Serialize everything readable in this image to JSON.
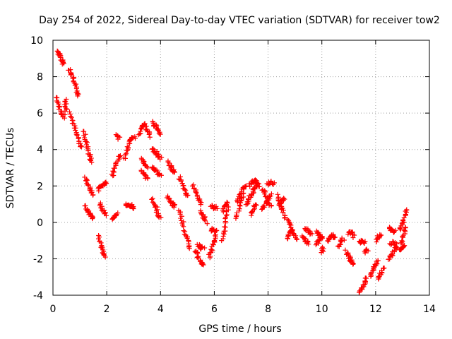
{
  "chart_data": {
    "type": "scatter",
    "title": "Day 254 of 2022, Sidereal Day-to-day VTEC variation (SDTVAR) for receiver tow2",
    "xlabel": "GPS time / hours",
    "ylabel": "SDTVAR / TECUs",
    "xlim": [
      0,
      14
    ],
    "ylim": [
      -4,
      10
    ],
    "xticks": [
      0,
      2,
      4,
      6,
      8,
      10,
      12,
      14
    ],
    "yticks": [
      -4,
      -2,
      0,
      2,
      4,
      6,
      8,
      10
    ],
    "xtick_labels": [
      "0",
      "2",
      "4",
      "6",
      "8",
      "10",
      "12",
      "14"
    ],
    "ytick_labels": [
      "-4",
      "-2",
      "0",
      "2",
      "4",
      "6",
      "8",
      "10"
    ],
    "grid": true,
    "marker": "plus",
    "color": "#ff0000",
    "tracks": [
      [
        [
          0.18,
          9.4
        ],
        [
          0.25,
          9.2
        ],
        [
          0.32,
          8.9
        ],
        [
          0.4,
          8.7
        ]
      ],
      [
        [
          0.15,
          6.9
        ],
        [
          0.22,
          6.4
        ],
        [
          0.3,
          6.0
        ],
        [
          0.4,
          5.8
        ],
        [
          0.48,
          6.8
        ],
        [
          0.5,
          6.2
        ]
      ],
      [
        [
          0.6,
          8.4
        ],
        [
          0.7,
          8.1
        ],
        [
          0.8,
          7.7
        ],
        [
          0.9,
          7.2
        ],
        [
          0.95,
          7.0
        ]
      ],
      [
        [
          0.65,
          6.0
        ],
        [
          0.75,
          5.5
        ],
        [
          0.85,
          5.0
        ],
        [
          0.95,
          4.5
        ],
        [
          1.05,
          4.1
        ]
      ],
      [
        [
          1.15,
          5.0
        ],
        [
          1.22,
          4.5
        ],
        [
          1.3,
          4.0
        ],
        [
          1.38,
          3.6
        ],
        [
          1.42,
          3.3
        ]
      ],
      [
        [
          1.2,
          2.5
        ],
        [
          1.3,
          2.1
        ],
        [
          1.4,
          1.8
        ],
        [
          1.48,
          1.5
        ]
      ],
      [
        [
          1.2,
          0.9
        ],
        [
          1.3,
          0.6
        ],
        [
          1.4,
          0.4
        ],
        [
          1.5,
          0.2
        ]
      ],
      [
        [
          1.7,
          -0.8
        ],
        [
          1.78,
          -1.2
        ],
        [
          1.86,
          -1.6
        ],
        [
          1.95,
          -1.9
        ]
      ],
      [
        [
          1.7,
          1.8
        ],
        [
          1.8,
          2.0
        ],
        [
          1.9,
          2.1
        ],
        [
          2.0,
          2.2
        ]
      ],
      [
        [
          1.75,
          1.0
        ],
        [
          1.85,
          0.7
        ],
        [
          1.95,
          0.4
        ]
      ],
      [
        [
          2.2,
          0.2
        ],
        [
          2.3,
          0.3
        ],
        [
          2.4,
          0.5
        ]
      ],
      [
        [
          2.2,
          2.5
        ],
        [
          2.3,
          2.9
        ],
        [
          2.4,
          3.4
        ],
        [
          2.5,
          3.7
        ]
      ],
      [
        [
          2.35,
          4.8
        ],
        [
          2.45,
          4.6
        ]
      ],
      [
        [
          2.65,
          3.5
        ],
        [
          2.75,
          4.0
        ],
        [
          2.85,
          4.4
        ],
        [
          2.95,
          4.6
        ],
        [
          3.05,
          4.7
        ]
      ],
      [
        [
          2.7,
          0.9
        ],
        [
          2.8,
          1.0
        ],
        [
          2.9,
          0.9
        ],
        [
          3.0,
          0.8
        ]
      ],
      [
        [
          3.2,
          4.8
        ],
        [
          3.3,
          5.2
        ],
        [
          3.4,
          5.4
        ],
        [
          3.5,
          5.1
        ],
        [
          3.6,
          4.7
        ]
      ],
      [
        [
          3.3,
          3.5
        ],
        [
          3.4,
          3.3
        ],
        [
          3.5,
          3.0
        ]
      ],
      [
        [
          3.3,
          2.8
        ],
        [
          3.4,
          2.6
        ],
        [
          3.5,
          2.4
        ]
      ],
      [
        [
          3.7,
          5.5
        ],
        [
          3.8,
          5.3
        ],
        [
          3.9,
          5.1
        ],
        [
          4.0,
          4.8
        ]
      ],
      [
        [
          3.7,
          4.0
        ],
        [
          3.8,
          3.9
        ],
        [
          3.9,
          3.7
        ],
        [
          4.0,
          3.5
        ]
      ],
      [
        [
          3.7,
          3.0
        ],
        [
          3.8,
          2.9
        ],
        [
          3.9,
          2.7
        ],
        [
          4.0,
          2.6
        ]
      ],
      [
        [
          3.7,
          1.3
        ],
        [
          3.8,
          0.9
        ],
        [
          3.9,
          0.5
        ],
        [
          4.0,
          0.2
        ]
      ],
      [
        [
          4.25,
          3.3
        ],
        [
          4.35,
          3.1
        ],
        [
          4.45,
          2.9
        ],
        [
          4.5,
          2.8
        ]
      ],
      [
        [
          4.25,
          1.4
        ],
        [
          4.35,
          1.2
        ],
        [
          4.45,
          1.0
        ],
        [
          4.5,
          0.9
        ]
      ],
      [
        [
          4.7,
          2.5
        ],
        [
          4.8,
          2.1
        ],
        [
          4.9,
          1.7
        ],
        [
          5.0,
          1.4
        ]
      ],
      [
        [
          4.7,
          0.7
        ],
        [
          4.8,
          0.1
        ],
        [
          4.9,
          -0.5
        ],
        [
          5.0,
          -1.0
        ],
        [
          5.1,
          -1.5
        ]
      ],
      [
        [
          5.2,
          2.0
        ],
        [
          5.3,
          1.7
        ],
        [
          5.4,
          1.3
        ],
        [
          5.5,
          1.0
        ]
      ],
      [
        [
          5.3,
          -1.5
        ],
        [
          5.4,
          -1.9
        ],
        [
          5.5,
          -2.2
        ],
        [
          5.6,
          -2.3
        ]
      ],
      [
        [
          5.4,
          -1.2
        ],
        [
          5.5,
          -1.4
        ],
        [
          5.6,
          -1.4
        ]
      ],
      [
        [
          5.5,
          0.6
        ],
        [
          5.6,
          0.3
        ],
        [
          5.7,
          0.0
        ]
      ],
      [
        [
          5.8,
          -1.9
        ],
        [
          5.9,
          -1.5
        ],
        [
          6.0,
          -1.1
        ],
        [
          6.05,
          -0.7
        ]
      ],
      [
        [
          5.9,
          0.9
        ],
        [
          6.0,
          0.8
        ],
        [
          6.1,
          0.8
        ]
      ],
      [
        [
          5.85,
          -0.5
        ],
        [
          5.95,
          -0.4
        ],
        [
          6.1,
          -0.5
        ]
      ],
      [
        [
          6.3,
          -1.0
        ],
        [
          6.38,
          -0.4
        ],
        [
          6.45,
          0.3
        ],
        [
          6.5,
          0.8
        ]
      ],
      [
        [
          6.3,
          0.6
        ],
        [
          6.4,
          0.9
        ],
        [
          6.5,
          1.1
        ]
      ],
      [
        [
          6.8,
          0.2
        ],
        [
          6.9,
          0.7
        ],
        [
          7.0,
          1.2
        ],
        [
          7.1,
          1.6
        ]
      ],
      [
        [
          6.85,
          1.1
        ],
        [
          6.95,
          1.5
        ],
        [
          7.05,
          1.8
        ],
        [
          7.2,
          2.0
        ]
      ],
      [
        [
          7.2,
          0.9
        ],
        [
          7.3,
          1.3
        ],
        [
          7.4,
          1.6
        ],
        [
          7.5,
          1.9
        ],
        [
          7.6,
          2.1
        ]
      ],
      [
        [
          7.3,
          2.0
        ],
        [
          7.4,
          2.2
        ],
        [
          7.5,
          2.3
        ],
        [
          7.6,
          2.2
        ],
        [
          7.7,
          1.9
        ]
      ],
      [
        [
          7.35,
          0.4
        ],
        [
          7.45,
          0.7
        ],
        [
          7.55,
          1.0
        ]
      ],
      [
        [
          7.8,
          1.8
        ],
        [
          7.9,
          1.5
        ],
        [
          8.0,
          1.2
        ],
        [
          8.1,
          0.9
        ]
      ],
      [
        [
          7.8,
          0.7
        ],
        [
          7.9,
          1.0
        ],
        [
          8.0,
          1.3
        ],
        [
          8.1,
          1.5
        ]
      ],
      [
        [
          8.0,
          2.1
        ],
        [
          8.1,
          2.2
        ],
        [
          8.2,
          2.1
        ]
      ],
      [
        [
          8.35,
          1.5
        ],
        [
          8.45,
          1.0
        ],
        [
          8.55,
          0.6
        ],
        [
          8.65,
          0.2
        ]
      ],
      [
        [
          8.4,
          0.9
        ],
        [
          8.5,
          1.2
        ],
        [
          8.6,
          1.3
        ]
      ],
      [
        [
          8.75,
          0.1
        ],
        [
          8.85,
          -0.2
        ],
        [
          8.95,
          -0.6
        ],
        [
          9.05,
          -0.9
        ]
      ],
      [
        [
          8.7,
          -0.9
        ],
        [
          8.8,
          -0.6
        ],
        [
          8.9,
          -0.4
        ]
      ],
      [
        [
          9.3,
          -0.8
        ],
        [
          9.4,
          -1.0
        ],
        [
          9.5,
          -1.2
        ]
      ],
      [
        [
          9.4,
          -0.3
        ],
        [
          9.5,
          -0.5
        ],
        [
          9.6,
          -0.7
        ]
      ],
      [
        [
          9.8,
          -1.2
        ],
        [
          9.9,
          -1.0
        ],
        [
          10.0,
          -0.8
        ]
      ],
      [
        [
          9.8,
          -0.5
        ],
        [
          9.9,
          -0.7
        ],
        [
          10.0,
          -0.9
        ]
      ],
      [
        [
          10.0,
          -1.6
        ],
        [
          10.05,
          -1.4
        ]
      ],
      [
        [
          10.2,
          -1.0
        ],
        [
          10.3,
          -0.8
        ],
        [
          10.4,
          -0.7
        ],
        [
          10.5,
          -0.9
        ]
      ],
      [
        [
          10.6,
          -1.3
        ],
        [
          10.7,
          -1.1
        ],
        [
          10.8,
          -0.9
        ]
      ],
      [
        [
          10.9,
          -1.6
        ],
        [
          11.0,
          -1.9
        ],
        [
          11.1,
          -2.1
        ],
        [
          11.15,
          -2.3
        ]
      ],
      [
        [
          11.0,
          -0.6
        ],
        [
          11.1,
          -0.5
        ],
        [
          11.2,
          -0.8
        ]
      ],
      [
        [
          11.4,
          -1.1
        ],
        [
          11.5,
          -1.0
        ],
        [
          11.6,
          -1.1
        ]
      ],
      [
        [
          11.4,
          -3.8
        ],
        [
          11.5,
          -3.6
        ],
        [
          11.6,
          -3.3
        ],
        [
          11.65,
          -3.0
        ]
      ],
      [
        [
          11.6,
          -1.6
        ],
        [
          11.7,
          -1.5
        ]
      ],
      [
        [
          11.8,
          -3.0
        ],
        [
          11.9,
          -2.6
        ],
        [
          12.0,
          -2.3
        ],
        [
          12.1,
          -2.1
        ]
      ],
      [
        [
          12.1,
          -3.1
        ],
        [
          12.2,
          -2.8
        ],
        [
          12.3,
          -2.5
        ]
      ],
      [
        [
          12.0,
          -1.0
        ],
        [
          12.1,
          -0.8
        ],
        [
          12.2,
          -0.7
        ]
      ],
      [
        [
          12.5,
          -0.3
        ],
        [
          12.6,
          -0.4
        ],
        [
          12.7,
          -0.5
        ]
      ],
      [
        [
          12.5,
          -2.0
        ],
        [
          12.6,
          -1.8
        ],
        [
          12.7,
          -1.5
        ],
        [
          12.8,
          -1.3
        ]
      ],
      [
        [
          12.55,
          -1.2
        ],
        [
          12.65,
          -1.1
        ],
        [
          12.75,
          -1.2
        ]
      ],
      [
        [
          12.9,
          -0.4
        ],
        [
          13.0,
          0.0
        ],
        [
          13.1,
          0.4
        ],
        [
          13.15,
          0.7
        ]
      ],
      [
        [
          12.95,
          -1.2
        ],
        [
          13.05,
          -0.7
        ],
        [
          13.1,
          -0.2
        ]
      ],
      [
        [
          12.9,
          -1.5
        ],
        [
          13.0,
          -1.4
        ],
        [
          13.1,
          -1.2
        ]
      ]
    ]
  }
}
